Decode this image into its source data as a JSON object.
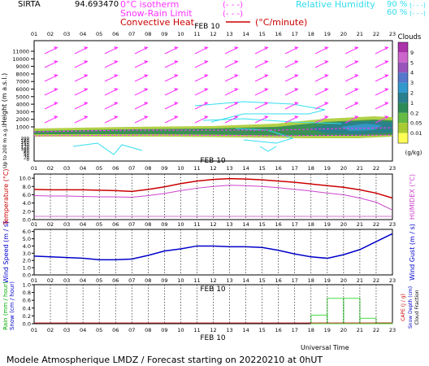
{
  "header": {
    "site": "SIRTA",
    "coords": "94.693470",
    "legend_0c": "0°C isotherm",
    "legend_snow": "Snow-Rain Limit",
    "legend_conv": "Convective Heat.",
    "legend_conv_unit": "(°C/minute)",
    "legend_rh": "Relative Humidity",
    "rh90": "90 %",
    "rh60": "60 %",
    "rh90_sample": "(- - -)",
    "rh60_sample": "(- - -)",
    "iso_sample": "(- - -)",
    "snow_sample": "(- - -)"
  },
  "colors": {
    "magenta": "#ff33ff",
    "cyan": "#33ddee",
    "red": "#cc0000",
    "temp": "#cc0000",
    "humidex": "#cc44cc",
    "wind": "#0000cc",
    "rain_label": "#00aa00",
    "snow_label": "#0000cc",
    "precip": "#44dd44"
  },
  "date_label": "FEB 10",
  "hours": [
    "01",
    "02",
    "03",
    "04",
    "05",
    "06",
    "07",
    "08",
    "09",
    "10",
    "11",
    "12",
    "13",
    "14",
    "15",
    "16",
    "17",
    "18",
    "19",
    "20",
    "21",
    "22",
    "23"
  ],
  "clouds": {
    "title": "Clouds",
    "unit": "(g/kg)",
    "scale_labels": [
      "9",
      "5",
      "4",
      "3",
      "2",
      "1",
      "0.2",
      "0.05",
      "0.01"
    ],
    "scale_colors": [
      "#aa33aa",
      "#cc66cc",
      "#9955bb",
      "#5577cc",
      "#3399cc",
      "#2a7f8f",
      "#2e8b57",
      "#66bb44",
      "#aacc33",
      "#ffff55"
    ]
  },
  "chart_data": [
    {
      "type": "area",
      "title": "",
      "ylabel": "Height (m a.s.l.)",
      "ylabel2": "Up to 200 m a.g.l.",
      "ticks_upper": [
        "11000",
        "10000",
        "9000",
        "8000",
        "7000",
        "6000",
        "5000",
        "4000",
        "3000",
        "2000",
        "1000"
      ],
      "ticks_lower": [
        "200",
        "180",
        "160",
        "140",
        "120",
        "100",
        "80",
        "60",
        "40",
        "20",
        "0"
      ],
      "x": [
        "01",
        "02",
        "03",
        "04",
        "05",
        "06",
        "07",
        "08",
        "09",
        "10",
        "11",
        "12",
        "13",
        "14",
        "15",
        "16",
        "17",
        "18",
        "19",
        "20",
        "21",
        "22",
        "23"
      ]
    },
    {
      "type": "line",
      "title": "",
      "ylabel": "Temperature (°C)",
      "ylabel_right": "HUMIDEX (°C)",
      "yticks": [
        "0.0",
        "2.0",
        "4.0",
        "6.0",
        "8.0",
        "10.0"
      ],
      "ylim": [
        0,
        11
      ],
      "x": [
        "01",
        "02",
        "03",
        "04",
        "05",
        "06",
        "07",
        "08",
        "09",
        "10",
        "11",
        "12",
        "13",
        "14",
        "15",
        "16",
        "17",
        "18",
        "19",
        "20",
        "21",
        "22",
        "23"
      ],
      "series": [
        {
          "name": "Temperature",
          "values": [
            7.3,
            7.2,
            7.2,
            7.2,
            7.1,
            7.0,
            6.8,
            7.3,
            7.9,
            8.7,
            9.3,
            9.7,
            9.9,
            9.8,
            9.6,
            9.3,
            9.0,
            8.6,
            8.2,
            7.8,
            7.2,
            6.4,
            5.2
          ]
        },
        {
          "name": "HUMIDEX",
          "values": [
            5.8,
            5.7,
            5.7,
            5.6,
            5.5,
            5.5,
            5.4,
            5.8,
            6.3,
            7.0,
            7.6,
            8.0,
            8.3,
            8.2,
            8.0,
            7.7,
            7.3,
            6.9,
            6.4,
            6.0,
            5.2,
            4.2,
            2.3
          ]
        }
      ]
    },
    {
      "type": "line",
      "title": "",
      "ylabel": "Wind Speed (m / s)",
      "ylabel_right": "Wind Gust (m / s)",
      "yticks": [
        "0.0",
        "1.0",
        "2.0",
        "3.0",
        "4.0",
        "5.0",
        "6.0"
      ],
      "ylim": [
        0,
        6.3
      ],
      "x": [
        "01",
        "02",
        "03",
        "04",
        "05",
        "06",
        "07",
        "08",
        "09",
        "10",
        "11",
        "12",
        "13",
        "14",
        "15",
        "16",
        "17",
        "18",
        "19",
        "20",
        "21",
        "22",
        "23"
      ],
      "series": [
        {
          "name": "Wind Speed",
          "values": [
            2.6,
            2.5,
            2.4,
            2.3,
            2.1,
            2.1,
            2.2,
            2.7,
            3.3,
            3.6,
            4.0,
            4.0,
            3.9,
            3.9,
            3.8,
            3.4,
            2.9,
            2.5,
            2.3,
            2.8,
            3.5,
            4.6,
            5.7
          ]
        }
      ]
    },
    {
      "type": "bar",
      "title": "",
      "ylabel": "Rain (mm / hour)",
      "ylabel2": "Snow (cm / hour)",
      "ylabel_right": "CAPE (J / g)",
      "ylabel_right2": "Snow Depth (cm)",
      "ylabel_right3": "Cloud Fraction",
      "yticks": [
        "0.0",
        "0.2",
        "0.4",
        "0.6",
        "0.8",
        "1.0"
      ],
      "ylim": [
        0,
        1.0
      ],
      "x": [
        "01",
        "02",
        "03",
        "04",
        "05",
        "06",
        "07",
        "08",
        "09",
        "10",
        "11",
        "12",
        "13",
        "14",
        "15",
        "16",
        "17",
        "18",
        "19",
        "20",
        "21",
        "22",
        "23"
      ],
      "series": [
        {
          "name": "Rain",
          "values": [
            0,
            0,
            0,
            0,
            0,
            0,
            0,
            0,
            0,
            0,
            0,
            0,
            0,
            0,
            0,
            0,
            0,
            0,
            0.22,
            0.65,
            0.65,
            0.14,
            0.02
          ]
        }
      ],
      "xlabel": "Universal Time"
    }
  ],
  "footer": {
    "text": "Modele Atmospherique LMDZ / Forecast starting on 20220210 at 0hUT",
    "universal_time": "Universal Time"
  }
}
